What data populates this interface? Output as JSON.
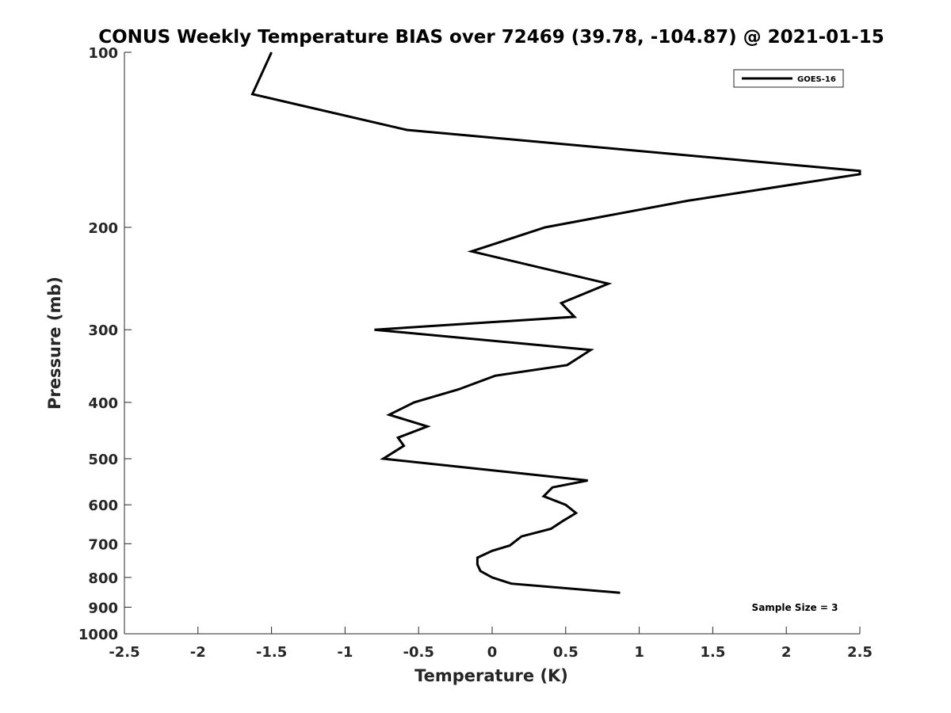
{
  "chart_data": {
    "type": "line",
    "title": "CONUS Weekly Temperature BIAS over 72469 (39.78, -104.87) @ 2021-01-15",
    "xlabel": "Temperature (K)",
    "ylabel": "Pressure (mb)",
    "xlim": [
      -2.5,
      2.5
    ],
    "ylim": [
      1000,
      100
    ],
    "yscale": "log",
    "x_ticks": [
      -2.5,
      -2,
      -1.5,
      -1,
      -0.5,
      0,
      0.5,
      1,
      1.5,
      2,
      2.5
    ],
    "x_tick_labels": [
      "-2.5",
      "-2",
      "-1.5",
      "-1",
      "-0.5",
      "0",
      "0.5",
      "1",
      "1.5",
      "2",
      "2.5"
    ],
    "y_ticks": [
      100,
      200,
      300,
      400,
      500,
      600,
      700,
      800,
      900,
      1000
    ],
    "y_tick_labels": [
      "100",
      "200",
      "300",
      "400",
      "500",
      "600",
      "700",
      "800",
      "900",
      "1000"
    ],
    "grid": false,
    "legend_position": "top-right",
    "annotation": "Sample Size = 3",
    "series": [
      {
        "name": "GOES-16",
        "color": "#000000",
        "points": [
          {
            "x": 0.87,
            "y": 850
          },
          {
            "x": 0.13,
            "y": 820
          },
          {
            "x": 0.0,
            "y": 800
          },
          {
            "x": -0.08,
            "y": 780
          },
          {
            "x": -0.1,
            "y": 760
          },
          {
            "x": -0.1,
            "y": 740
          },
          {
            "x": 0.0,
            "y": 720
          },
          {
            "x": 0.12,
            "y": 705
          },
          {
            "x": 0.2,
            "y": 680
          },
          {
            "x": 0.4,
            "y": 660
          },
          {
            "x": 0.48,
            "y": 640
          },
          {
            "x": 0.57,
            "y": 620
          },
          {
            "x": 0.5,
            "y": 600
          },
          {
            "x": 0.35,
            "y": 580
          },
          {
            "x": 0.41,
            "y": 560
          },
          {
            "x": 0.65,
            "y": 545
          },
          {
            "x": -0.74,
            "y": 500
          },
          {
            "x": -0.6,
            "y": 475
          },
          {
            "x": -0.64,
            "y": 460
          },
          {
            "x": -0.44,
            "y": 440
          },
          {
            "x": -0.7,
            "y": 420
          },
          {
            "x": -0.53,
            "y": 400
          },
          {
            "x": -0.23,
            "y": 380
          },
          {
            "x": 0.02,
            "y": 360
          },
          {
            "x": 0.51,
            "y": 345
          },
          {
            "x": 0.67,
            "y": 325
          },
          {
            "x": -0.8,
            "y": 300
          },
          {
            "x": 0.56,
            "y": 285
          },
          {
            "x": 0.47,
            "y": 270
          },
          {
            "x": 0.79,
            "y": 250
          },
          {
            "x": -0.14,
            "y": 220
          },
          {
            "x": 0.36,
            "y": 200
          },
          {
            "x": 1.33,
            "y": 180
          },
          {
            "x": 2.5,
            "y": 162
          },
          {
            "x": 2.5,
            "y": 160
          },
          {
            "x": -0.58,
            "y": 136
          },
          {
            "x": -1.63,
            "y": 118
          },
          {
            "x": -1.5,
            "y": 100
          }
        ]
      }
    ]
  }
}
